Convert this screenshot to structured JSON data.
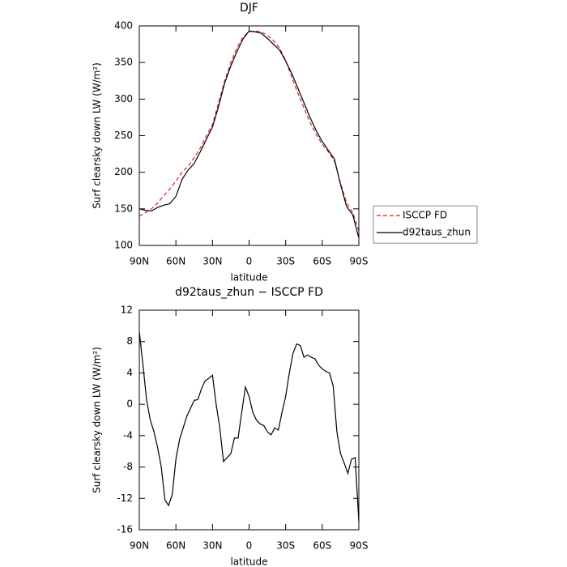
{
  "chart_data": [
    {
      "type": "line",
      "title": "DJF",
      "xlabel": "latitude",
      "ylabel": "Surf clearsky down LW (W/m²)",
      "x": [
        90,
        85,
        80,
        75,
        70,
        65,
        60,
        55,
        50,
        45,
        40,
        35,
        30,
        25,
        20,
        15,
        10,
        5,
        0,
        -5,
        -10,
        -15,
        -20,
        -25,
        -30,
        -35,
        -40,
        -45,
        -50,
        -55,
        -60,
        -65,
        -70,
        -75,
        -80,
        -85,
        -90
      ],
      "xlim": [
        90,
        -90
      ],
      "xticks": [
        {
          "value": 90,
          "label": "90N"
        },
        {
          "value": 60,
          "label": "60N"
        },
        {
          "value": 30,
          "label": "30N"
        },
        0,
        {
          "value": -30,
          "label": "30S"
        },
        {
          "value": -60,
          "label": "60S"
        },
        {
          "value": -90,
          "label": "90S"
        }
      ],
      "ylim": [
        100,
        400
      ],
      "yticks": [
        100,
        150,
        200,
        250,
        300,
        350,
        400
      ],
      "legend": "right",
      "series": [
        {
          "name": "ISCCP FD",
          "color": "#e02020",
          "dash": true,
          "values": [
            140,
            145,
            150,
            158,
            168,
            177,
            188,
            200,
            208,
            220,
            233,
            250,
            265,
            295,
            325,
            350,
            370,
            385,
            392,
            393,
            392,
            387,
            380,
            370,
            353,
            330,
            308,
            288,
            268,
            252,
            238,
            228,
            215,
            185,
            158,
            145,
            120
          ]
        },
        {
          "name": "d92taus_zhun",
          "color": "#000000",
          "dash": false,
          "values": [
            150,
            148,
            147,
            152,
            155,
            157,
            167,
            190,
            203,
            212,
            228,
            245,
            262,
            290,
            322,
            345,
            365,
            382,
            393,
            392,
            390,
            383,
            375,
            367,
            352,
            335,
            315,
            295,
            275,
            257,
            242,
            230,
            218,
            183,
            153,
            142,
            110
          ]
        }
      ]
    },
    {
      "type": "line",
      "title": "d92taus_zhun − ISCCP FD",
      "xlabel": "latitude",
      "ylabel": "Surf clearsky down LW (W/m²)",
      "x": [
        90,
        87,
        84,
        81,
        78,
        75,
        72,
        69,
        66,
        63,
        60,
        57,
        54,
        51,
        48,
        45,
        42,
        39,
        36,
        33,
        30,
        27,
        24,
        21,
        18,
        15,
        12,
        9,
        6,
        3,
        0,
        -3,
        -6,
        -9,
        -12,
        -15,
        -18,
        -21,
        -24,
        -27,
        -30,
        -33,
        -36,
        -39,
        -42,
        -45,
        -48,
        -51,
        -54,
        -57,
        -60,
        -63,
        -66,
        -69,
        -72,
        -75,
        -78,
        -81,
        -84,
        -87,
        -90
      ],
      "xlim": [
        90,
        -90
      ],
      "xticks": [
        {
          "value": 90,
          "label": "90N"
        },
        {
          "value": 60,
          "label": "60N"
        },
        {
          "value": 30,
          "label": "30N"
        },
        0,
        {
          "value": -30,
          "label": "30S"
        },
        {
          "value": -60,
          "label": "60S"
        },
        {
          "value": -90,
          "label": "90S"
        }
      ],
      "ylim": [
        -16,
        12
      ],
      "yticks": [
        -16,
        -12,
        -8,
        -4,
        0,
        4,
        8,
        12
      ],
      "series": [
        {
          "color": "#000000",
          "values": [
            9.3,
            5,
            0.5,
            -2,
            -3.5,
            -5.5,
            -8,
            -12.2,
            -12.9,
            -11.5,
            -7,
            -4.5,
            -3,
            -1.5,
            -0.5,
            0.5,
            0.6,
            2,
            3,
            3.3,
            3.7,
            0,
            -3,
            -7.3,
            -6.8,
            -6.3,
            -4.3,
            -4.3,
            -1,
            2.2,
            1,
            -1,
            -2,
            -2.5,
            -2.7,
            -3.5,
            -3.9,
            -3,
            -3.3,
            -1,
            1,
            4,
            6.5,
            7.7,
            7.5,
            6,
            6.3,
            6,
            5.8,
            5,
            4.5,
            4.2,
            4,
            2.3,
            -3.5,
            -6.3,
            -7.5,
            -8.8,
            -7,
            -6.8,
            -15
          ]
        }
      ]
    }
  ]
}
